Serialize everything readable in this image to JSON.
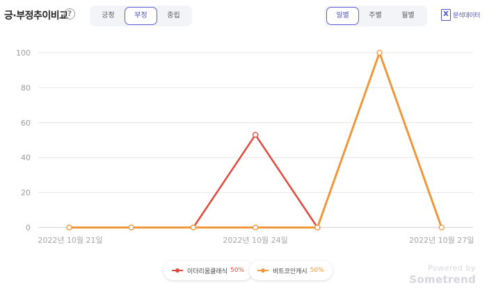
{
  "header": {
    "title": "긍·부정추이비교",
    "help_glyph": "?",
    "tone_options": [
      "긍정",
      "부정",
      "중립"
    ],
    "tone_selected": "부정",
    "period_options": [
      "일별",
      "주별",
      "월별"
    ],
    "period_selected": "일별",
    "export_label": "분석데이터"
  },
  "chart_data": {
    "type": "line",
    "x": [
      "2022-10-21",
      "2022-10-22",
      "2022-10-23",
      "2022-10-24",
      "2022-10-25",
      "2022-10-26",
      "2022-10-27"
    ],
    "x_tick_labels": [
      "2022년 10월 21일",
      "2022년 10월 24일",
      "2022년 10월 27일"
    ],
    "y_ticks": [
      0,
      20,
      40,
      60,
      80,
      100
    ],
    "ylim": [
      0,
      100
    ],
    "grid": true,
    "series": [
      {
        "name": "이더리움클래식",
        "share": "50%",
        "color": "#e0483c",
        "values": [
          0,
          0,
          0,
          53,
          0,
          null,
          null
        ]
      },
      {
        "name": "비트코인캐시",
        "share": "50%",
        "color": "#f0963a",
        "values": [
          0,
          0,
          0,
          0,
          0,
          100,
          0
        ]
      }
    ],
    "legend_position": "bottom-center"
  },
  "branding": {
    "powered_by": "Powered by",
    "brand": "Sometrend"
  }
}
